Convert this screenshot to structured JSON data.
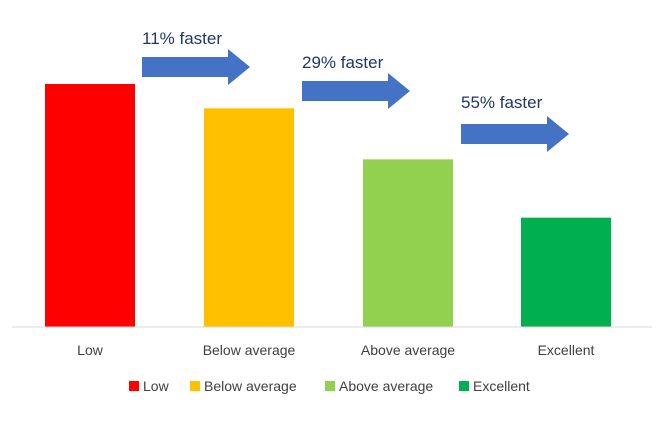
{
  "chart_data": {
    "type": "bar",
    "title": "",
    "xlabel": "",
    "ylabel": "",
    "ylim": [
      0,
      100
    ],
    "grid": false,
    "legend_position": "bottom",
    "categories": [
      "Low",
      "Below average",
      "Above average",
      "Excellent"
    ],
    "values": [
      100,
      90,
      69,
      45
    ],
    "colors": [
      "#ff0000",
      "#ffc000",
      "#92d050",
      "#00b050"
    ],
    "annotations": [
      {
        "text": "11% faster",
        "from": "Low",
        "to": "Below average"
      },
      {
        "text": "29% faster",
        "from": "Below average",
        "to": "Above average"
      },
      {
        "text": "55% faster",
        "from": "Above average",
        "to": "Excellent"
      }
    ],
    "arrow_color": "#4472c4",
    "axis_color": "#d9d9d9"
  }
}
